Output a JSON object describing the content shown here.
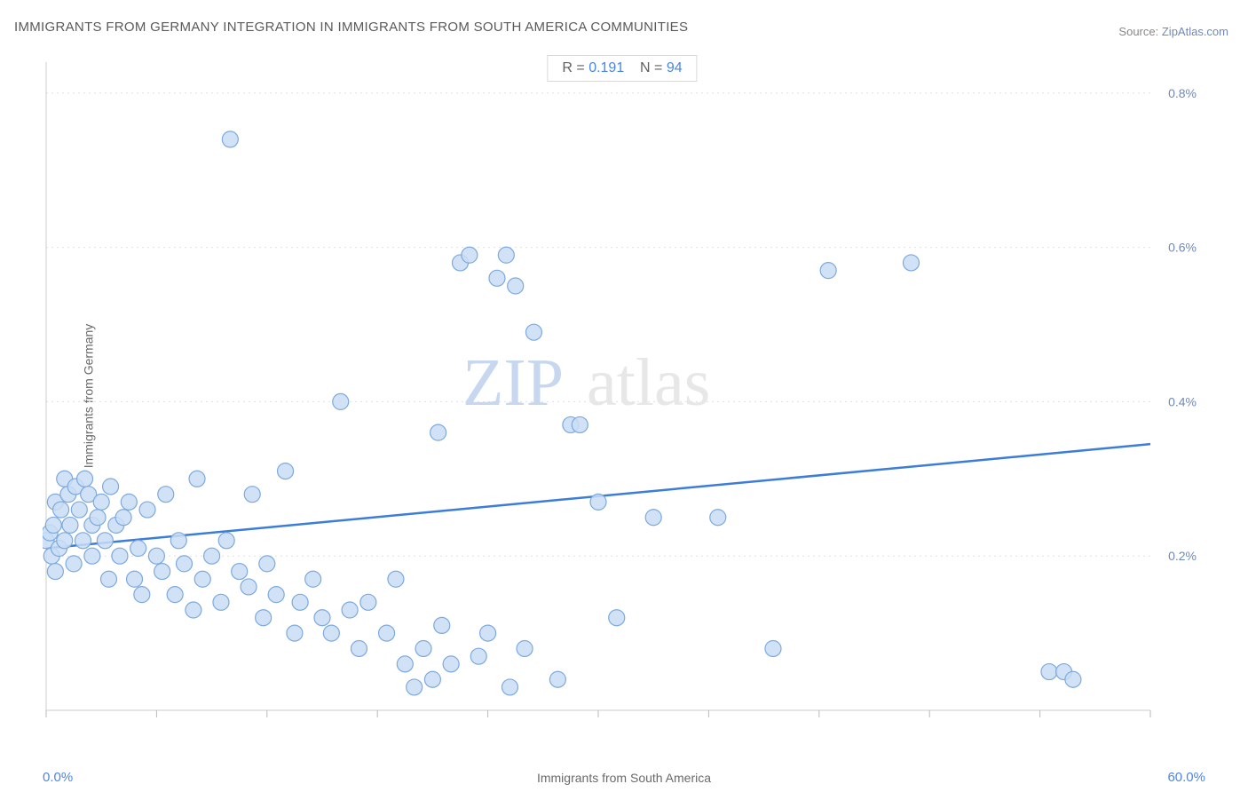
{
  "title": "IMMIGRANTS FROM GERMANY INTEGRATION IN IMMIGRANTS FROM SOUTH AMERICA COMMUNITIES",
  "source_label": "Source:",
  "source_value": "ZipAtlas.com",
  "stats": {
    "r_label": "R =",
    "r_value": "0.191",
    "n_label": "N =",
    "n_value": "94"
  },
  "x_axis": {
    "label": "Immigrants from South America",
    "min_label": "0.0%",
    "max_label": "60.0%",
    "min": 0.0,
    "max": 60.0
  },
  "y_axis": {
    "label": "Immigrants from Germany",
    "min": 0.0,
    "max": 0.84,
    "ticks": [
      0.2,
      0.4,
      0.6,
      0.8
    ],
    "tick_labels": [
      "0.2%",
      "0.4%",
      "0.6%",
      "0.8%"
    ]
  },
  "grid_color": "#e0e0e0",
  "axis_line_color": "#cccccc",
  "tick_color": "#bababa",
  "tick_label_color": "#6f8ab7",
  "marker": {
    "fill": "#c9ddf5",
    "stroke": "#7da9dd",
    "radius": 9,
    "opacity": 0.85
  },
  "trendline": {
    "color": "#3b7dd8",
    "width": 2.5,
    "y_at_xmin": 0.21,
    "y_at_xmax": 0.345
  },
  "watermark": {
    "text1": "ZIP",
    "text2": "atlas"
  },
  "x_tick_positions": [
    0,
    6,
    12,
    18,
    24,
    30,
    36,
    42,
    48,
    54,
    60
  ],
  "points": [
    [
      0.0,
      0.22
    ],
    [
      0.2,
      0.23
    ],
    [
      0.3,
      0.2
    ],
    [
      0.4,
      0.24
    ],
    [
      0.5,
      0.18
    ],
    [
      0.5,
      0.27
    ],
    [
      0.7,
      0.21
    ],
    [
      0.8,
      0.26
    ],
    [
      1.0,
      0.3
    ],
    [
      1.0,
      0.22
    ],
    [
      1.2,
      0.28
    ],
    [
      1.3,
      0.24
    ],
    [
      1.5,
      0.19
    ],
    [
      1.6,
      0.29
    ],
    [
      1.8,
      0.26
    ],
    [
      2.0,
      0.22
    ],
    [
      2.1,
      0.3
    ],
    [
      2.3,
      0.28
    ],
    [
      2.5,
      0.24
    ],
    [
      2.5,
      0.2
    ],
    [
      2.8,
      0.25
    ],
    [
      3.0,
      0.27
    ],
    [
      3.2,
      0.22
    ],
    [
      3.4,
      0.17
    ],
    [
      3.5,
      0.29
    ],
    [
      3.8,
      0.24
    ],
    [
      4.0,
      0.2
    ],
    [
      4.2,
      0.25
    ],
    [
      4.5,
      0.27
    ],
    [
      4.8,
      0.17
    ],
    [
      5.0,
      0.21
    ],
    [
      5.2,
      0.15
    ],
    [
      5.5,
      0.26
    ],
    [
      6.0,
      0.2
    ],
    [
      6.3,
      0.18
    ],
    [
      6.5,
      0.28
    ],
    [
      7.0,
      0.15
    ],
    [
      7.2,
      0.22
    ],
    [
      7.5,
      0.19
    ],
    [
      8.0,
      0.13
    ],
    [
      8.2,
      0.3
    ],
    [
      8.5,
      0.17
    ],
    [
      9.0,
      0.2
    ],
    [
      9.5,
      0.14
    ],
    [
      9.8,
      0.22
    ],
    [
      10.0,
      0.74
    ],
    [
      10.5,
      0.18
    ],
    [
      11.0,
      0.16
    ],
    [
      11.2,
      0.28
    ],
    [
      11.8,
      0.12
    ],
    [
      12.0,
      0.19
    ],
    [
      12.5,
      0.15
    ],
    [
      13.0,
      0.31
    ],
    [
      13.5,
      0.1
    ],
    [
      13.8,
      0.14
    ],
    [
      14.5,
      0.17
    ],
    [
      15.0,
      0.12
    ],
    [
      15.5,
      0.1
    ],
    [
      16.0,
      0.4
    ],
    [
      16.5,
      0.13
    ],
    [
      17.0,
      0.08
    ],
    [
      17.5,
      0.14
    ],
    [
      18.5,
      0.1
    ],
    [
      19.0,
      0.17
    ],
    [
      19.5,
      0.06
    ],
    [
      20.0,
      0.03
    ],
    [
      20.5,
      0.08
    ],
    [
      21.0,
      0.04
    ],
    [
      21.3,
      0.36
    ],
    [
      21.5,
      0.11
    ],
    [
      22.0,
      0.06
    ],
    [
      22.5,
      0.58
    ],
    [
      23.0,
      0.59
    ],
    [
      23.5,
      0.07
    ],
    [
      24.0,
      0.1
    ],
    [
      24.5,
      0.56
    ],
    [
      25.0,
      0.59
    ],
    [
      25.2,
      0.03
    ],
    [
      25.5,
      0.55
    ],
    [
      26.0,
      0.08
    ],
    [
      26.5,
      0.49
    ],
    [
      27.8,
      0.04
    ],
    [
      28.5,
      0.37
    ],
    [
      29.0,
      0.37
    ],
    [
      30.0,
      0.27
    ],
    [
      31.0,
      0.12
    ],
    [
      33.0,
      0.25
    ],
    [
      36.5,
      0.25
    ],
    [
      39.5,
      0.08
    ],
    [
      42.5,
      0.57
    ],
    [
      47.0,
      0.58
    ],
    [
      54.5,
      0.05
    ],
    [
      55.3,
      0.05
    ],
    [
      55.8,
      0.04
    ]
  ]
}
